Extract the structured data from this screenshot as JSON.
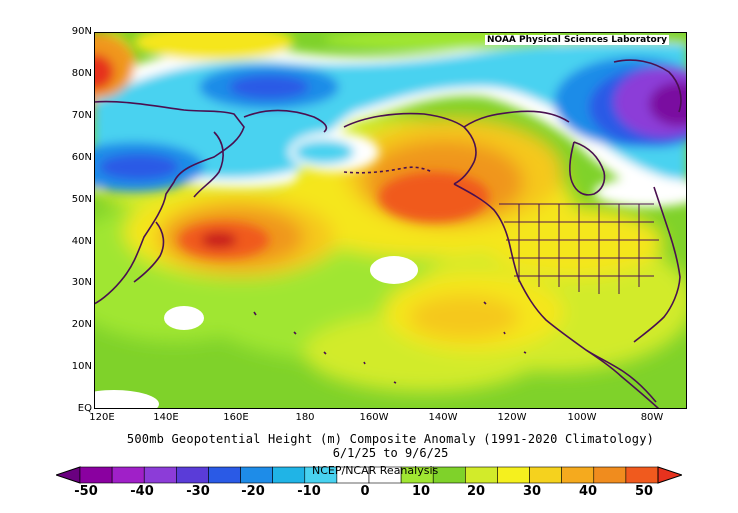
{
  "credit": "NOAA Physical Sciences Laboratory",
  "title": "500mb Geopotential Height (m) Composite Anomaly (1991-2020 Climatology)",
  "date_range": "6/1/25 to 9/6/25",
  "dataset": "NCEP/NCAR Reanalysis",
  "lat_labels": [
    "90N",
    "80N",
    "70N",
    "60N",
    "50N",
    "40N",
    "30N",
    "20N",
    "10N",
    "EQ"
  ],
  "lon_labels": [
    "120E",
    "140E",
    "160E",
    "180",
    "160W",
    "140W",
    "120W",
    "100W",
    "80W"
  ],
  "colorbar": {
    "ticks": [
      "-50",
      "-40",
      "-30",
      "-20",
      "-10",
      "0",
      "10",
      "20",
      "30",
      "40",
      "50"
    ],
    "colors": [
      "#6a0080",
      "#8a00a0",
      "#a020c8",
      "#8c3cd8",
      "#5a3cd8",
      "#2a5ae6",
      "#1e8ce8",
      "#20b4e6",
      "#48d2f0",
      "#ffffff",
      "#ffffff",
      "#a0e632",
      "#7fd22a",
      "#d2eb2a",
      "#f5f01e",
      "#f5d21e",
      "#f5aa1e",
      "#f08c1e",
      "#f05a1e",
      "#e6321e"
    ]
  },
  "colors": {
    "green": "#7fd22a",
    "light_green": "#a0e632",
    "yellow_green": "#d2eb2a",
    "yellow": "#f5e61e",
    "orange_yellow": "#f5c81e",
    "orange": "#f0961e",
    "red_orange": "#f05a1e",
    "red": "#dc321e",
    "white": "#ffffff",
    "cyan": "#48d2f0",
    "blue": "#1e8ce8",
    "dark_blue": "#2a5ae6",
    "purple": "#8c3cd8",
    "dark_purple": "#6a0080",
    "coast": "#4a1050"
  }
}
